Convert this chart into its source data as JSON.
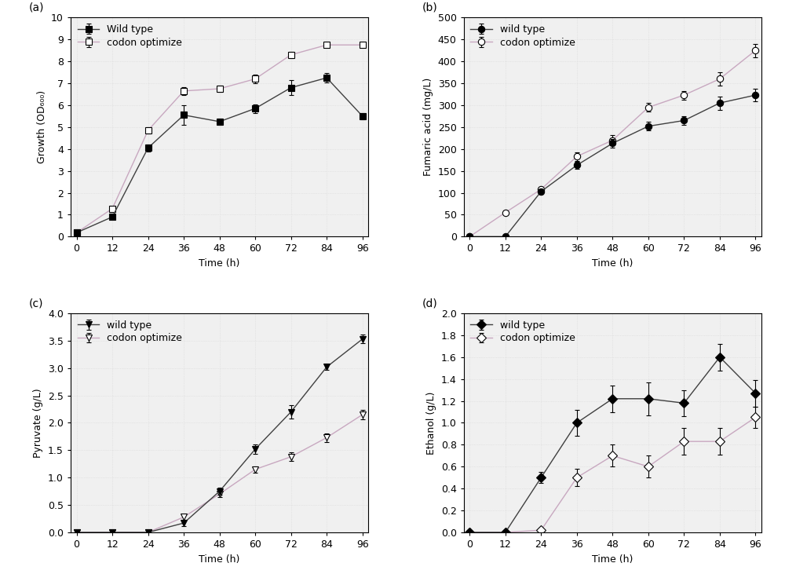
{
  "time": [
    0,
    12,
    24,
    36,
    48,
    60,
    72,
    84,
    96
  ],
  "panel_a": {
    "label": "(a)",
    "wt_y": [
      0.18,
      0.9,
      4.05,
      5.55,
      5.25,
      5.85,
      6.8,
      7.25,
      5.5
    ],
    "wt_err": [
      0.05,
      0.08,
      0.15,
      0.45,
      0.15,
      0.2,
      0.35,
      0.2,
      0.15
    ],
    "co_y": [
      0.18,
      1.28,
      4.85,
      6.65,
      6.75,
      7.2,
      8.3,
      8.75,
      8.75
    ],
    "co_err": [
      0.05,
      0.08,
      0.15,
      0.18,
      0.15,
      0.2,
      0.15,
      0.1,
      0.1
    ],
    "ylabel": "Growth (OD₆₀₀)",
    "ylim": [
      0,
      10
    ],
    "yticks": [
      0,
      1,
      2,
      3,
      4,
      5,
      6,
      7,
      8,
      9,
      10
    ],
    "wt_marker": "s",
    "co_marker": "s",
    "wt_label": "Wild type",
    "co_label": "codon optimize"
  },
  "panel_b": {
    "label": "(b)",
    "wt_y": [
      0,
      0,
      103,
      163,
      213,
      252,
      265,
      305,
      323
    ],
    "wt_err": [
      0,
      0,
      5,
      8,
      10,
      10,
      10,
      15,
      15
    ],
    "co_y": [
      0,
      55,
      108,
      183,
      220,
      295,
      323,
      360,
      425
    ],
    "co_err": [
      0,
      5,
      6,
      10,
      12,
      10,
      10,
      15,
      15
    ],
    "ylabel": "Fumaric acid (mg/L)",
    "ylim": [
      0,
      500
    ],
    "yticks": [
      0,
      50,
      100,
      150,
      200,
      250,
      300,
      350,
      400,
      450,
      500
    ],
    "wt_marker": "o",
    "co_marker": "o",
    "wt_label": "wild type",
    "co_label": "codon optimize"
  },
  "panel_c": {
    "label": "(c)",
    "wt_y": [
      0,
      0,
      0,
      0.17,
      0.75,
      1.52,
      2.2,
      3.02,
      3.53
    ],
    "wt_err": [
      0.02,
      0.02,
      0.02,
      0.05,
      0.06,
      0.08,
      0.12,
      0.05,
      0.08
    ],
    "co_y": [
      0,
      0,
      0,
      0.28,
      0.7,
      1.15,
      1.38,
      1.73,
      2.15
    ],
    "co_err": [
      0.02,
      0.02,
      0.02,
      0.05,
      0.05,
      0.06,
      0.08,
      0.08,
      0.08
    ],
    "ylabel": "Pyruvate (g/L)",
    "ylim": [
      0,
      4.0
    ],
    "yticks": [
      0.0,
      0.5,
      1.0,
      1.5,
      2.0,
      2.5,
      3.0,
      3.5,
      4.0
    ],
    "wt_marker": "v",
    "co_marker": "v",
    "wt_label": "wild type",
    "co_label": "codon optimize"
  },
  "panel_d": {
    "label": "(d)",
    "wt_y": [
      0,
      0,
      0.5,
      1.0,
      1.22,
      1.22,
      1.18,
      1.6,
      1.27
    ],
    "wt_err": [
      0.02,
      0.02,
      0.05,
      0.12,
      0.12,
      0.15,
      0.12,
      0.12,
      0.12
    ],
    "co_y": [
      0,
      0,
      0.02,
      0.5,
      0.7,
      0.6,
      0.83,
      0.83,
      1.05
    ],
    "co_err": [
      0.02,
      0.02,
      0.02,
      0.08,
      0.1,
      0.1,
      0.12,
      0.12,
      0.1
    ],
    "ylabel": "Ethanol (g/L)",
    "ylim": [
      0,
      2.0
    ],
    "yticks": [
      0.0,
      0.2,
      0.4,
      0.6,
      0.8,
      1.0,
      1.2,
      1.4,
      1.6,
      1.8,
      2.0
    ],
    "wt_marker": "D",
    "co_marker": "D",
    "wt_label": "wild type",
    "co_label": "codon optimize"
  },
  "xlabel": "Time (h)",
  "xticks": [
    0,
    12,
    24,
    36,
    48,
    60,
    72,
    84,
    96
  ],
  "line_color_co": "#c8a8c0",
  "line_color_wt": "#404040",
  "marker_size": 6,
  "line_width": 1.0,
  "capsize": 2,
  "elinewidth": 0.8,
  "font_size": 9,
  "label_font_size": 9,
  "panel_label_fontsize": 10,
  "bg_color": "#f0f0f0",
  "dot_grid_color": "#d8d8d8"
}
